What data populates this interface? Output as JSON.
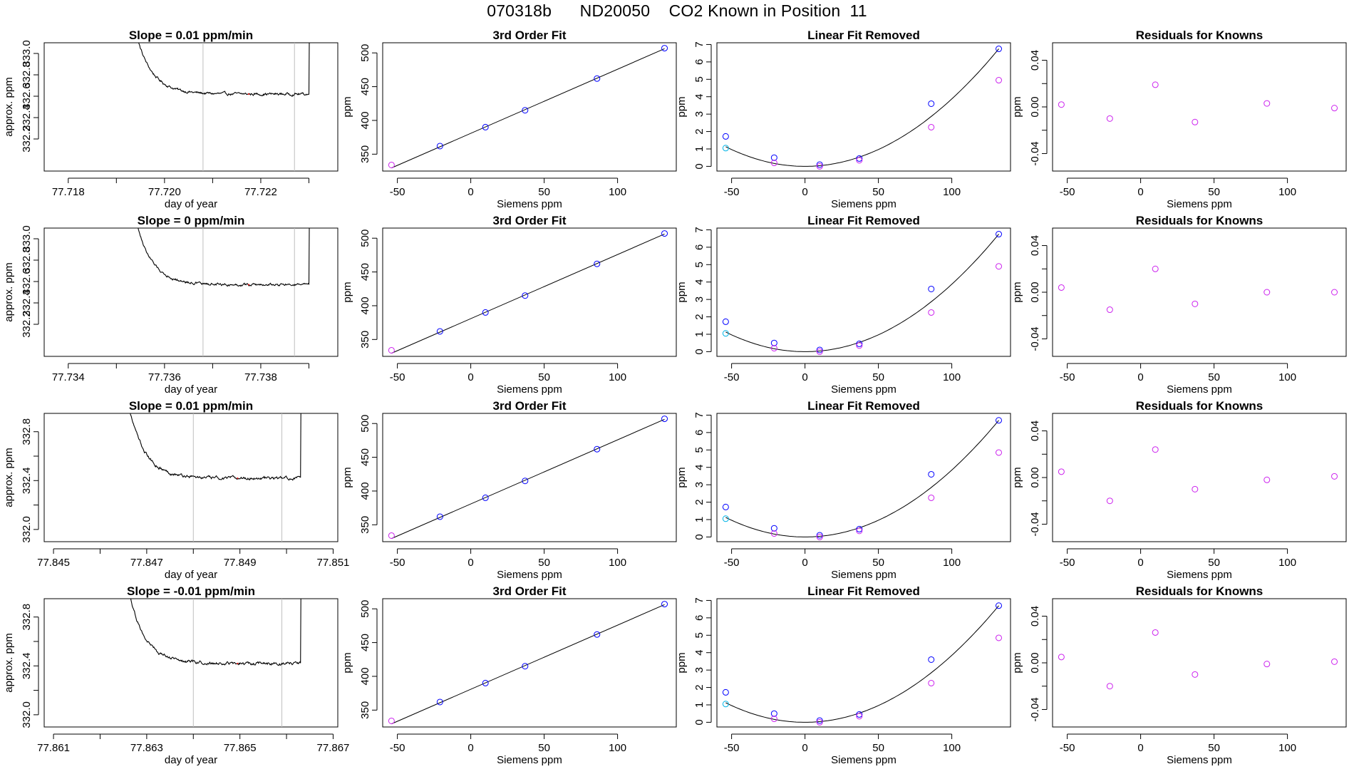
{
  "title": "070318b      ND20050    CO2 Known in Position  11",
  "colors": {
    "axis": "#000000",
    "trace": "#000000",
    "trace_marker": "#ff0000",
    "vline": "#bebebe",
    "point_blue": "#0000ff",
    "point_magenta": "#cc22ee",
    "point_cyan": "#00b4e6",
    "fit_line": "#000000"
  },
  "chart_data": [
    {
      "type": "line",
      "row": 0,
      "col": 0,
      "title": "Slope =  0.01  ppm/min",
      "xlabel": "day of year",
      "ylabel": "approx. ppm",
      "xlim": [
        77.7175,
        77.7236
      ],
      "ylim": [
        331.9,
        333.1
      ],
      "xticks": [
        77.718,
        77.719,
        77.72,
        77.721,
        77.722,
        77.723
      ],
      "xtick_labels": [
        "77.718",
        "",
        "77.720",
        "",
        "77.722",
        ""
      ],
      "yticks": [
        332.2,
        332.4,
        332.6,
        332.8,
        333.0
      ],
      "ytick_labels": [
        "332.2",
        "332.4",
        "332.6",
        "332.8",
        "333.0"
      ],
      "vlines": [
        77.7208,
        77.7227
      ],
      "trace": {
        "x_start": 77.7193,
        "x_spike": 77.723,
        "level": 332.62,
        "start_value": 333.1
      }
    },
    {
      "type": "line",
      "row": 1,
      "col": 0,
      "title": "Slope =  0  ppm/min",
      "xlabel": "day of year",
      "ylabel": "approx. ppm",
      "xlim": [
        77.7335,
        77.7396
      ],
      "ylim": [
        331.9,
        333.1
      ],
      "xticks": [
        77.734,
        77.735,
        77.736,
        77.737,
        77.738,
        77.739
      ],
      "xtick_labels": [
        "77.734",
        "",
        "77.736",
        "",
        "77.738",
        ""
      ],
      "yticks": [
        332.2,
        332.4,
        332.6,
        332.8,
        333.0
      ],
      "ytick_labels": [
        "332.2",
        "332.4",
        "332.6",
        "332.8",
        "333.0"
      ],
      "vlines": [
        77.7368,
        77.7387
      ],
      "trace": {
        "x_start": 77.7353,
        "x_spike": 77.739,
        "level": 332.57,
        "start_value": 333.1
      }
    },
    {
      "type": "line",
      "row": 2,
      "col": 0,
      "title": "Slope =  0.01  ppm/min",
      "xlabel": "day of year",
      "ylabel": "approx. ppm",
      "xlim": [
        77.8448,
        77.8511
      ],
      "ylim": [
        331.9,
        332.95
      ],
      "xticks": [
        77.845,
        77.846,
        77.847,
        77.848,
        77.849,
        77.85,
        77.851
      ],
      "xtick_labels": [
        "77.845",
        "",
        "77.847",
        "",
        "77.849",
        "",
        "77.851"
      ],
      "yticks": [
        332.0,
        332.2,
        332.4,
        332.6,
        332.8
      ],
      "ytick_labels": [
        "332.0",
        "",
        "332.4",
        "",
        "332.8"
      ],
      "vlines": [
        77.848,
        77.8499
      ],
      "trace": {
        "x_start": 77.8465,
        "x_spike": 77.8503,
        "level": 332.42,
        "start_value": 332.95
      }
    },
    {
      "type": "line",
      "row": 3,
      "col": 0,
      "title": "Slope =  -0.01  ppm/min",
      "xlabel": "day of year",
      "ylabel": "approx. ppm",
      "xlim": [
        77.8608,
        77.8671
      ],
      "ylim": [
        331.9,
        332.95
      ],
      "xticks": [
        77.861,
        77.862,
        77.863,
        77.864,
        77.865,
        77.866,
        77.867
      ],
      "xtick_labels": [
        "77.861",
        "",
        "77.863",
        "",
        "77.865",
        "",
        "77.867"
      ],
      "yticks": [
        332.0,
        332.2,
        332.4,
        332.6,
        332.8
      ],
      "ytick_labels": [
        "332.0",
        "",
        "332.4",
        "",
        "332.8"
      ],
      "vlines": [
        77.864,
        77.8659
      ],
      "trace": {
        "x_start": 77.8625,
        "x_spike": 77.8663,
        "level": 332.42,
        "start_value": 332.95
      }
    },
    {
      "type": "scatter",
      "row": 0,
      "col": 1,
      "title": "3rd Order Fit",
      "xlabel": "Siemens ppm",
      "ylabel": "ppm",
      "xlim": [
        -60,
        140
      ],
      "ylim": [
        325,
        515
      ],
      "xticks": [
        -50,
        0,
        50,
        100
      ],
      "xtick_labels": [
        "-50",
        "0",
        "50",
        "100"
      ],
      "yticks": [
        350,
        400,
        450,
        500
      ],
      "ytick_labels": [
        "350",
        "400",
        "450",
        "500"
      ],
      "fit": "line",
      "series": [
        {
          "name": "knowns",
          "color": "point_blue",
          "x": [
            -21,
            10,
            37,
            86,
            132
          ],
          "y": [
            362,
            390,
            415,
            462,
            507
          ]
        },
        {
          "name": "low",
          "color": "point_magenta",
          "x": [
            -54
          ],
          "y": [
            334
          ]
        }
      ]
    },
    {
      "type": "scatter",
      "row": 1,
      "col": 1,
      "title": "3rd Order Fit",
      "xlabel": "Siemens ppm",
      "ylabel": "ppm",
      "xlim": [
        -60,
        140
      ],
      "ylim": [
        325,
        515
      ],
      "xticks": [
        -50,
        0,
        50,
        100
      ],
      "xtick_labels": [
        "-50",
        "0",
        "50",
        "100"
      ],
      "yticks": [
        350,
        400,
        450,
        500
      ],
      "ytick_labels": [
        "350",
        "400",
        "450",
        "500"
      ],
      "fit": "line",
      "series": [
        {
          "name": "knowns",
          "color": "point_blue",
          "x": [
            -21,
            10,
            37,
            86,
            132
          ],
          "y": [
            362,
            390,
            415,
            462,
            507
          ]
        },
        {
          "name": "low",
          "color": "point_magenta",
          "x": [
            -54
          ],
          "y": [
            334
          ]
        }
      ]
    },
    {
      "type": "scatter",
      "row": 2,
      "col": 1,
      "title": "3rd Order Fit",
      "xlabel": "Siemens ppm",
      "ylabel": "ppm",
      "xlim": [
        -60,
        140
      ],
      "ylim": [
        325,
        515
      ],
      "xticks": [
        -50,
        0,
        50,
        100
      ],
      "xtick_labels": [
        "-50",
        "0",
        "50",
        "100"
      ],
      "yticks": [
        350,
        400,
        450,
        500
      ],
      "ytick_labels": [
        "350",
        "400",
        "450",
        "500"
      ],
      "fit": "line",
      "series": [
        {
          "name": "knowns",
          "color": "point_blue",
          "x": [
            -21,
            10,
            37,
            86,
            132
          ],
          "y": [
            362,
            390,
            415,
            462,
            507
          ]
        },
        {
          "name": "low",
          "color": "point_magenta",
          "x": [
            -54
          ],
          "y": [
            334
          ]
        }
      ]
    },
    {
      "type": "scatter",
      "row": 3,
      "col": 1,
      "title": "3rd Order Fit",
      "xlabel": "Siemens ppm",
      "ylabel": "ppm",
      "xlim": [
        -60,
        140
      ],
      "ylim": [
        325,
        515
      ],
      "xticks": [
        -50,
        0,
        50,
        100
      ],
      "xtick_labels": [
        "-50",
        "0",
        "50",
        "100"
      ],
      "yticks": [
        350,
        400,
        450,
        500
      ],
      "ytick_labels": [
        "350",
        "400",
        "450",
        "500"
      ],
      "fit": "line",
      "series": [
        {
          "name": "knowns",
          "color": "point_blue",
          "x": [
            -21,
            10,
            37,
            86,
            132
          ],
          "y": [
            362,
            390,
            415,
            462,
            507
          ]
        },
        {
          "name": "low",
          "color": "point_magenta",
          "x": [
            -54
          ],
          "y": [
            334
          ]
        }
      ]
    },
    {
      "type": "scatter",
      "row": 0,
      "col": 2,
      "title": "Linear Fit Removed",
      "xlabel": "Siemens ppm",
      "ylabel": "ppm",
      "xlim": [
        -60,
        140
      ],
      "ylim": [
        -0.27,
        7.1
      ],
      "xticks": [
        -50,
        0,
        50,
        100
      ],
      "xtick_labels": [
        "-50",
        "0",
        "50",
        "100"
      ],
      "yticks": [
        0,
        1,
        2,
        3,
        4,
        5,
        6,
        7
      ],
      "ytick_labels": [
        "0",
        "1",
        "2",
        "3",
        "4",
        "5",
        "6",
        "7"
      ],
      "fit": "quadratic",
      "series": [
        {
          "name": "blue",
          "color": "point_blue",
          "x": [
            -54,
            -21,
            10,
            37,
            86,
            132
          ],
          "y": [
            1.72,
            0.5,
            0.1,
            0.45,
            3.6,
            6.75
          ]
        },
        {
          "name": "magenta",
          "color": "point_magenta",
          "x": [
            -21,
            10,
            37,
            86,
            132
          ],
          "y": [
            0.2,
            0.0,
            0.35,
            2.25,
            4.95
          ]
        },
        {
          "name": "cyan",
          "color": "point_cyan",
          "x": [
            -54
          ],
          "y": [
            1.05
          ]
        }
      ]
    },
    {
      "type": "scatter",
      "row": 1,
      "col": 2,
      "title": "Linear Fit Removed",
      "xlabel": "Siemens ppm",
      "ylabel": "ppm",
      "xlim": [
        -60,
        140
      ],
      "ylim": [
        -0.27,
        7.1
      ],
      "xticks": [
        -50,
        0,
        50,
        100
      ],
      "xtick_labels": [
        "-50",
        "0",
        "50",
        "100"
      ],
      "yticks": [
        0,
        1,
        2,
        3,
        4,
        5,
        6,
        7
      ],
      "ytick_labels": [
        "0",
        "1",
        "2",
        "3",
        "4",
        "5",
        "6",
        "7"
      ],
      "fit": "quadratic",
      "series": [
        {
          "name": "blue",
          "color": "point_blue",
          "x": [
            -54,
            -21,
            10,
            37,
            86,
            132
          ],
          "y": [
            1.72,
            0.5,
            0.1,
            0.45,
            3.6,
            6.75
          ]
        },
        {
          "name": "magenta",
          "color": "point_magenta",
          "x": [
            -21,
            10,
            37,
            86,
            132
          ],
          "y": [
            0.2,
            0.0,
            0.35,
            2.25,
            4.9
          ]
        },
        {
          "name": "cyan",
          "color": "point_cyan",
          "x": [
            -54
          ],
          "y": [
            1.05
          ]
        }
      ]
    },
    {
      "type": "scatter",
      "row": 2,
      "col": 2,
      "title": "Linear Fit Removed",
      "xlabel": "Siemens ppm",
      "ylabel": "ppm",
      "xlim": [
        -60,
        140
      ],
      "ylim": [
        -0.27,
        7.1
      ],
      "xticks": [
        -50,
        0,
        50,
        100
      ],
      "xtick_labels": [
        "-50",
        "0",
        "50",
        "100"
      ],
      "yticks": [
        0,
        1,
        2,
        3,
        4,
        5,
        6,
        7
      ],
      "ytick_labels": [
        "0",
        "1",
        "2",
        "3",
        "4",
        "5",
        "6",
        "7"
      ],
      "fit": "quadratic",
      "series": [
        {
          "name": "blue",
          "color": "point_blue",
          "x": [
            -54,
            -21,
            10,
            37,
            86,
            132
          ],
          "y": [
            1.72,
            0.5,
            0.1,
            0.45,
            3.6,
            6.7
          ]
        },
        {
          "name": "magenta",
          "color": "point_magenta",
          "x": [
            -21,
            10,
            37,
            86,
            132
          ],
          "y": [
            0.2,
            0.0,
            0.35,
            2.25,
            4.85
          ]
        },
        {
          "name": "cyan",
          "color": "point_cyan",
          "x": [
            -54
          ],
          "y": [
            1.05
          ]
        }
      ]
    },
    {
      "type": "scatter",
      "row": 3,
      "col": 2,
      "title": "Linear Fit Removed",
      "xlabel": "Siemens ppm",
      "ylabel": "ppm",
      "xlim": [
        -60,
        140
      ],
      "ylim": [
        -0.27,
        7.1
      ],
      "xticks": [
        -50,
        0,
        50,
        100
      ],
      "xtick_labels": [
        "-50",
        "0",
        "50",
        "100"
      ],
      "yticks": [
        0,
        1,
        2,
        3,
        4,
        5,
        6,
        7
      ],
      "ytick_labels": [
        "0",
        "1",
        "2",
        "3",
        "4",
        "5",
        "6",
        "7"
      ],
      "fit": "quadratic",
      "series": [
        {
          "name": "blue",
          "color": "point_blue",
          "x": [
            -54,
            -21,
            10,
            37,
            86,
            132
          ],
          "y": [
            1.72,
            0.5,
            0.1,
            0.45,
            3.6,
            6.7
          ]
        },
        {
          "name": "magenta",
          "color": "point_magenta",
          "x": [
            -21,
            10,
            37,
            86,
            132
          ],
          "y": [
            0.2,
            0.0,
            0.35,
            2.25,
            4.85
          ]
        },
        {
          "name": "cyan",
          "color": "point_cyan",
          "x": [
            -54
          ],
          "y": [
            1.05
          ]
        }
      ]
    },
    {
      "type": "scatter",
      "row": 0,
      "col": 3,
      "title": "Residuals for Knowns",
      "xlabel": "Siemens ppm",
      "ylabel": "ppm",
      "xlim": [
        -60,
        140
      ],
      "ylim": [
        -0.055,
        0.055
      ],
      "xticks": [
        -50,
        0,
        50,
        100
      ],
      "xtick_labels": [
        "-50",
        "0",
        "50",
        "100"
      ],
      "yticks": [
        -0.04,
        -0.02,
        0.0,
        0.02,
        0.04
      ],
      "ytick_labels": [
        "-0.04",
        "",
        "0.00",
        "",
        "0.04"
      ],
      "series": [
        {
          "name": "residuals",
          "color": "point_magenta",
          "x": [
            -54,
            -21,
            10,
            37,
            86,
            132
          ],
          "y": [
            0.002,
            -0.01,
            0.019,
            -0.013,
            0.003,
            -0.001
          ]
        }
      ]
    },
    {
      "type": "scatter",
      "row": 1,
      "col": 3,
      "title": "Residuals for Knowns",
      "xlabel": "Siemens ppm",
      "ylabel": "ppm",
      "xlim": [
        -60,
        140
      ],
      "ylim": [
        -0.055,
        0.055
      ],
      "xticks": [
        -50,
        0,
        50,
        100
      ],
      "xtick_labels": [
        "-50",
        "0",
        "50",
        "100"
      ],
      "yticks": [
        -0.04,
        -0.02,
        0.0,
        0.02,
        0.04
      ],
      "ytick_labels": [
        "-0.04",
        "",
        "0.00",
        "",
        "0.04"
      ],
      "series": [
        {
          "name": "residuals",
          "color": "point_magenta",
          "x": [
            -54,
            -21,
            10,
            37,
            86,
            132
          ],
          "y": [
            0.004,
            -0.015,
            0.02,
            -0.01,
            0.0,
            0.0
          ]
        }
      ]
    },
    {
      "type": "scatter",
      "row": 2,
      "col": 3,
      "title": "Residuals for Knowns",
      "xlabel": "Siemens ppm",
      "ylabel": "ppm",
      "xlim": [
        -60,
        140
      ],
      "ylim": [
        -0.055,
        0.055
      ],
      "xticks": [
        -50,
        0,
        50,
        100
      ],
      "xtick_labels": [
        "-50",
        "0",
        "50",
        "100"
      ],
      "yticks": [
        -0.04,
        -0.02,
        0.0,
        0.02,
        0.04
      ],
      "ytick_labels": [
        "-0.04",
        "",
        "0.00",
        "",
        "0.04"
      ],
      "series": [
        {
          "name": "residuals",
          "color": "point_magenta",
          "x": [
            -54,
            -21,
            10,
            37,
            86,
            132
          ],
          "y": [
            0.005,
            -0.02,
            0.024,
            -0.01,
            -0.002,
            0.001
          ]
        }
      ]
    },
    {
      "type": "scatter",
      "row": 3,
      "col": 3,
      "title": "Residuals for Knowns",
      "xlabel": "Siemens ppm",
      "ylabel": "ppm",
      "xlim": [
        -60,
        140
      ],
      "ylim": [
        -0.055,
        0.055
      ],
      "xticks": [
        -50,
        0,
        50,
        100
      ],
      "xtick_labels": [
        "-50",
        "0",
        "50",
        "100"
      ],
      "yticks": [
        -0.04,
        -0.02,
        0.0,
        0.02,
        0.04
      ],
      "ytick_labels": [
        "-0.04",
        "",
        "0.00",
        "",
        "0.04"
      ],
      "series": [
        {
          "name": "residuals",
          "color": "point_magenta",
          "x": [
            -54,
            -21,
            10,
            37,
            86,
            132
          ],
          "y": [
            0.005,
            -0.02,
            0.026,
            -0.01,
            -0.001,
            0.001
          ]
        }
      ]
    }
  ]
}
